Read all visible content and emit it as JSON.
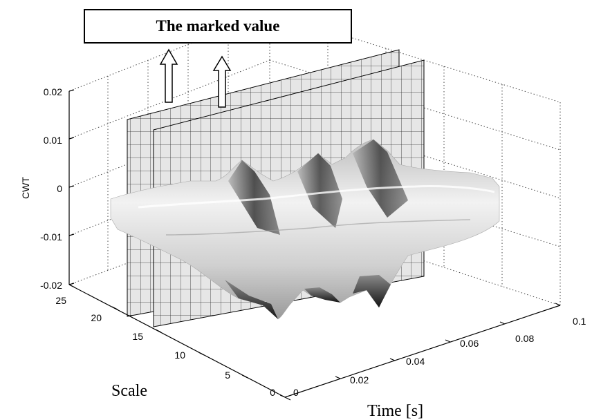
{
  "annotation": {
    "text": "The marked value"
  },
  "chart_data": {
    "type": "surface",
    "title": "",
    "xlabel": "Time [s]",
    "ylabel": "Scale",
    "zlabel": "CWT",
    "xlim": [
      0,
      0.1
    ],
    "ylim": [
      0,
      25
    ],
    "zlim": [
      -0.02,
      0.02
    ],
    "x_ticks": [
      "0",
      "0.02",
      "0.04",
      "0.06",
      "0.08",
      "0.1"
    ],
    "y_ticks": [
      "0",
      "5",
      "10",
      "15",
      "20",
      "25"
    ],
    "z_ticks": [
      "-0.02",
      "-0.01",
      "0",
      "0.01",
      "0.02"
    ],
    "grid": true,
    "colormap": "gray",
    "marked_planes_scale": [
      15,
      20
    ],
    "surface_peaks_time": [
      0.02,
      0.04,
      0.06
    ],
    "surface_amplitude_range": [
      -0.02,
      0.01
    ]
  }
}
